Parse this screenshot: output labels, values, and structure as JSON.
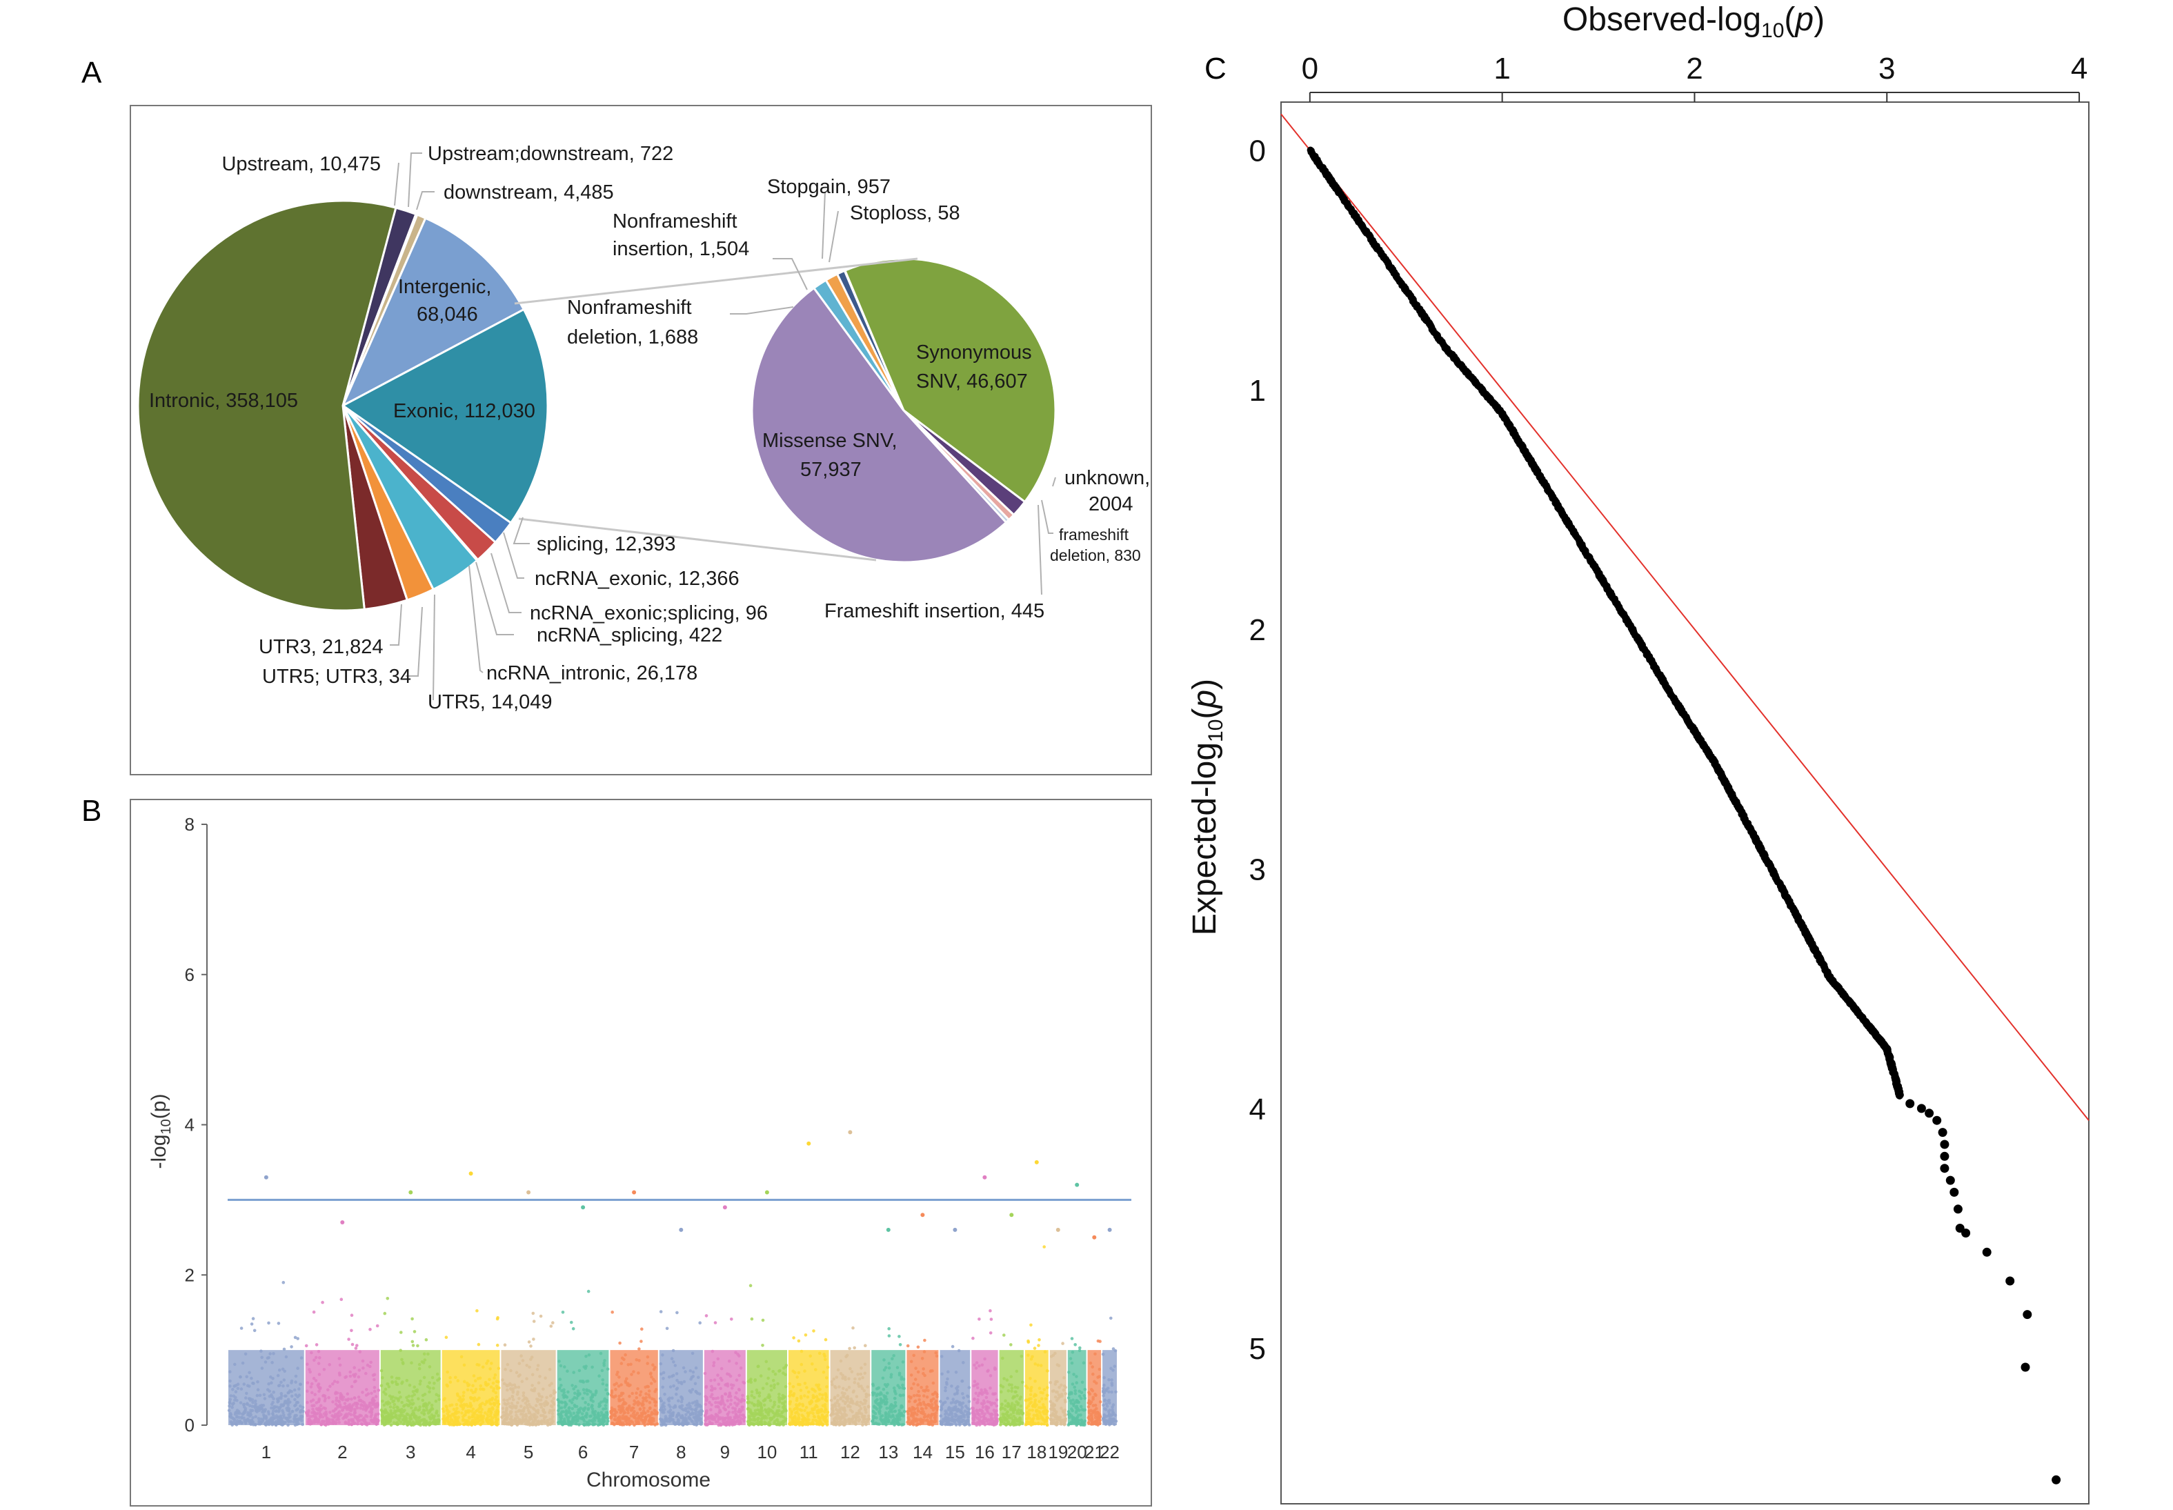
{
  "panels": {
    "a": "A",
    "b": "B",
    "c": "C"
  },
  "chart_data": [
    {
      "type": "pie",
      "panel": "A",
      "slices": [
        {
          "label": "Upstream, 10,475",
          "value": 10475,
          "color": "#3f3660"
        },
        {
          "label": "Upstream;downstream, 722",
          "value": 722,
          "color": "#d66a1e"
        },
        {
          "label": "downstream, 4,485",
          "value": 4485,
          "color": "#c9b48a"
        },
        {
          "label": "Intergenic,",
          "label2": "68,046",
          "value": 68046,
          "color": "#7a9fd0"
        },
        {
          "label": "Exonic, 112,030",
          "value": 112030,
          "color": "#2f8fa6"
        },
        {
          "label": "splicing, 12,393",
          "value": 12393,
          "color": "#4a7fc0"
        },
        {
          "label": "ncRNA_exonic, 12,366",
          "value": 12366,
          "color": "#c84b48"
        },
        {
          "label": "ncRNA_exonic;splicing, 96",
          "value": 96,
          "color": "#8c6fb0"
        },
        {
          "label": "ncRNA_splicing, 422",
          "value": 422,
          "color": "#5aa0b5"
        },
        {
          "label": "ncRNA_intronic, 26,178",
          "value": 26178,
          "color": "#4bb3cc"
        },
        {
          "label": "UTR5, 14,049",
          "value": 14049,
          "color": "#f2923a"
        },
        {
          "label": "UTR5; UTR3, 34",
          "value": 34,
          "color": "#aab6d8"
        },
        {
          "label": "UTR3, 21,824",
          "value": 21824,
          "color": "#7b2a2a"
        },
        {
          "label": "Intronic, 358,105",
          "value": 358105,
          "color": "#5f7330"
        }
      ]
    },
    {
      "type": "pie",
      "panel": "A-inset",
      "slices": [
        {
          "label": "Stopgain, 957",
          "value": 957,
          "color": "#3d5a8c"
        },
        {
          "label": "Stoploss, 58",
          "value": 58,
          "color": "#a9a9a9"
        },
        {
          "label": "Synonymous",
          "label2": "SNV, 46,607",
          "value": 46607,
          "color": "#7fa33f"
        },
        {
          "label": "unknown,",
          "label2": "2004",
          "value": 2004,
          "color": "#5b3f7a"
        },
        {
          "label": "frameshift",
          "label2": "deletion, 830",
          "value": 830,
          "color": "#e6a7a1"
        },
        {
          "label": "Frameshift insertion, 445",
          "value": 445,
          "color": "#c0d2e4"
        },
        {
          "label": "Missense SNV,",
          "label2": "57,937",
          "value": 57937,
          "color": "#9b85b8"
        },
        {
          "label": "Nonframeshift",
          "label2": "deletion, 1,688",
          "value": 1688,
          "color": "#5fb3d1"
        },
        {
          "label": "Nonframeshift",
          "label2": "insertion, 1,504",
          "value": 1504,
          "color": "#f0a04a"
        }
      ]
    },
    {
      "type": "scatter",
      "panel": "B",
      "ylabel_prefix": "-log",
      "ylabel_sub": "10",
      "ylabel_suffix": "(p)",
      "xlabel": "Chromosome",
      "ylim": [
        0,
        8
      ],
      "yticks": [
        "0",
        "2",
        "4",
        "6",
        "8"
      ],
      "threshold": 3.0,
      "threshold_color": "#7a9fd0",
      "chromosomes": [
        {
          "label": "1",
          "size": 249,
          "max": 3.3,
          "color": "#8fa3cc"
        },
        {
          "label": "2",
          "size": 243,
          "max": 2.7,
          "color": "#e07fc2"
        },
        {
          "label": "3",
          "size": 198,
          "max": 3.1,
          "color": "#a4d45a"
        },
        {
          "label": "4",
          "size": 191,
          "max": 3.35,
          "color": "#fdd835"
        },
        {
          "label": "5",
          "size": 181,
          "max": 3.1,
          "color": "#dcc098"
        },
        {
          "label": "6",
          "size": 171,
          "max": 2.9,
          "color": "#5ec3a3"
        },
        {
          "label": "7",
          "size": 159,
          "max": 3.1,
          "color": "#f58a5a"
        },
        {
          "label": "8",
          "size": 145,
          "max": 2.6,
          "color": "#8fa3cc"
        },
        {
          "label": "9",
          "size": 138,
          "max": 2.9,
          "color": "#e07fc2"
        },
        {
          "label": "10",
          "size": 134,
          "max": 3.1,
          "color": "#a4d45a"
        },
        {
          "label": "11",
          "size": 135,
          "max": 3.75,
          "color": "#fdd835"
        },
        {
          "label": "12",
          "size": 133,
          "max": 3.9,
          "color": "#dcc098"
        },
        {
          "label": "13",
          "size": 114,
          "max": 2.6,
          "color": "#5ec3a3"
        },
        {
          "label": "14",
          "size": 107,
          "max": 2.8,
          "color": "#f58a5a"
        },
        {
          "label": "15",
          "size": 102,
          "max": 2.6,
          "color": "#8fa3cc"
        },
        {
          "label": "16",
          "size": 90,
          "max": 3.3,
          "color": "#e07fc2"
        },
        {
          "label": "17",
          "size": 83,
          "max": 2.8,
          "color": "#a4d45a"
        },
        {
          "label": "18",
          "size": 80,
          "max": 3.5,
          "color": "#fdd835"
        },
        {
          "label": "19",
          "size": 58,
          "max": 2.6,
          "color": "#dcc098"
        },
        {
          "label": "20",
          "size": 64,
          "max": 3.2,
          "color": "#5ec3a3"
        },
        {
          "label": "21",
          "size": 48,
          "max": 2.5,
          "color": "#f58a5a"
        },
        {
          "label": "22",
          "size": 51,
          "max": 2.6,
          "color": "#8fa3cc"
        }
      ]
    },
    {
      "type": "scatter",
      "panel": "C",
      "xlabel_prefix": "Observed-log",
      "xlabel_sub": "10",
      "xlabel_suffix": "p",
      "ylabel_prefix": "Expected-log",
      "ylabel_sub": "10",
      "ylabel_suffix": "p",
      "xlim": [
        -0.15,
        4.05
      ],
      "ylim": [
        -0.2,
        5.65
      ],
      "xticks": [
        "0",
        "1",
        "2",
        "3",
        "4"
      ],
      "yticks": [
        "0",
        "1",
        "2",
        "3",
        "4",
        "5"
      ],
      "reference_line": {
        "color": "#e3312b",
        "slope": 1
      },
      "point_color": "#000000",
      "curve": [
        [
          0,
          0
        ],
        [
          0.3,
          0.35
        ],
        [
          0.7,
          0.82
        ],
        [
          1.0,
          1.1
        ],
        [
          1.3,
          1.5
        ],
        [
          1.6,
          1.9
        ],
        [
          1.9,
          2.3
        ],
        [
          2.1,
          2.55
        ],
        [
          2.3,
          2.85
        ],
        [
          2.5,
          3.15
        ],
        [
          2.7,
          3.45
        ],
        [
          2.9,
          3.65
        ],
        [
          3.0,
          3.75
        ],
        [
          3.07,
          3.95
        ]
      ],
      "points": [
        [
          3.12,
          3.98
        ],
        [
          3.18,
          4.0
        ],
        [
          3.22,
          4.02
        ],
        [
          3.26,
          4.05
        ],
        [
          3.29,
          4.1
        ],
        [
          3.3,
          4.15
        ],
        [
          3.3,
          4.2
        ],
        [
          3.3,
          4.25
        ],
        [
          3.33,
          4.3
        ],
        [
          3.35,
          4.35
        ],
        [
          3.37,
          4.42
        ],
        [
          3.38,
          4.5
        ],
        [
          3.41,
          4.52
        ],
        [
          3.52,
          4.6
        ],
        [
          3.64,
          4.72
        ],
        [
          3.73,
          4.86
        ],
        [
          3.72,
          5.08
        ],
        [
          3.88,
          5.55
        ]
      ]
    }
  ]
}
